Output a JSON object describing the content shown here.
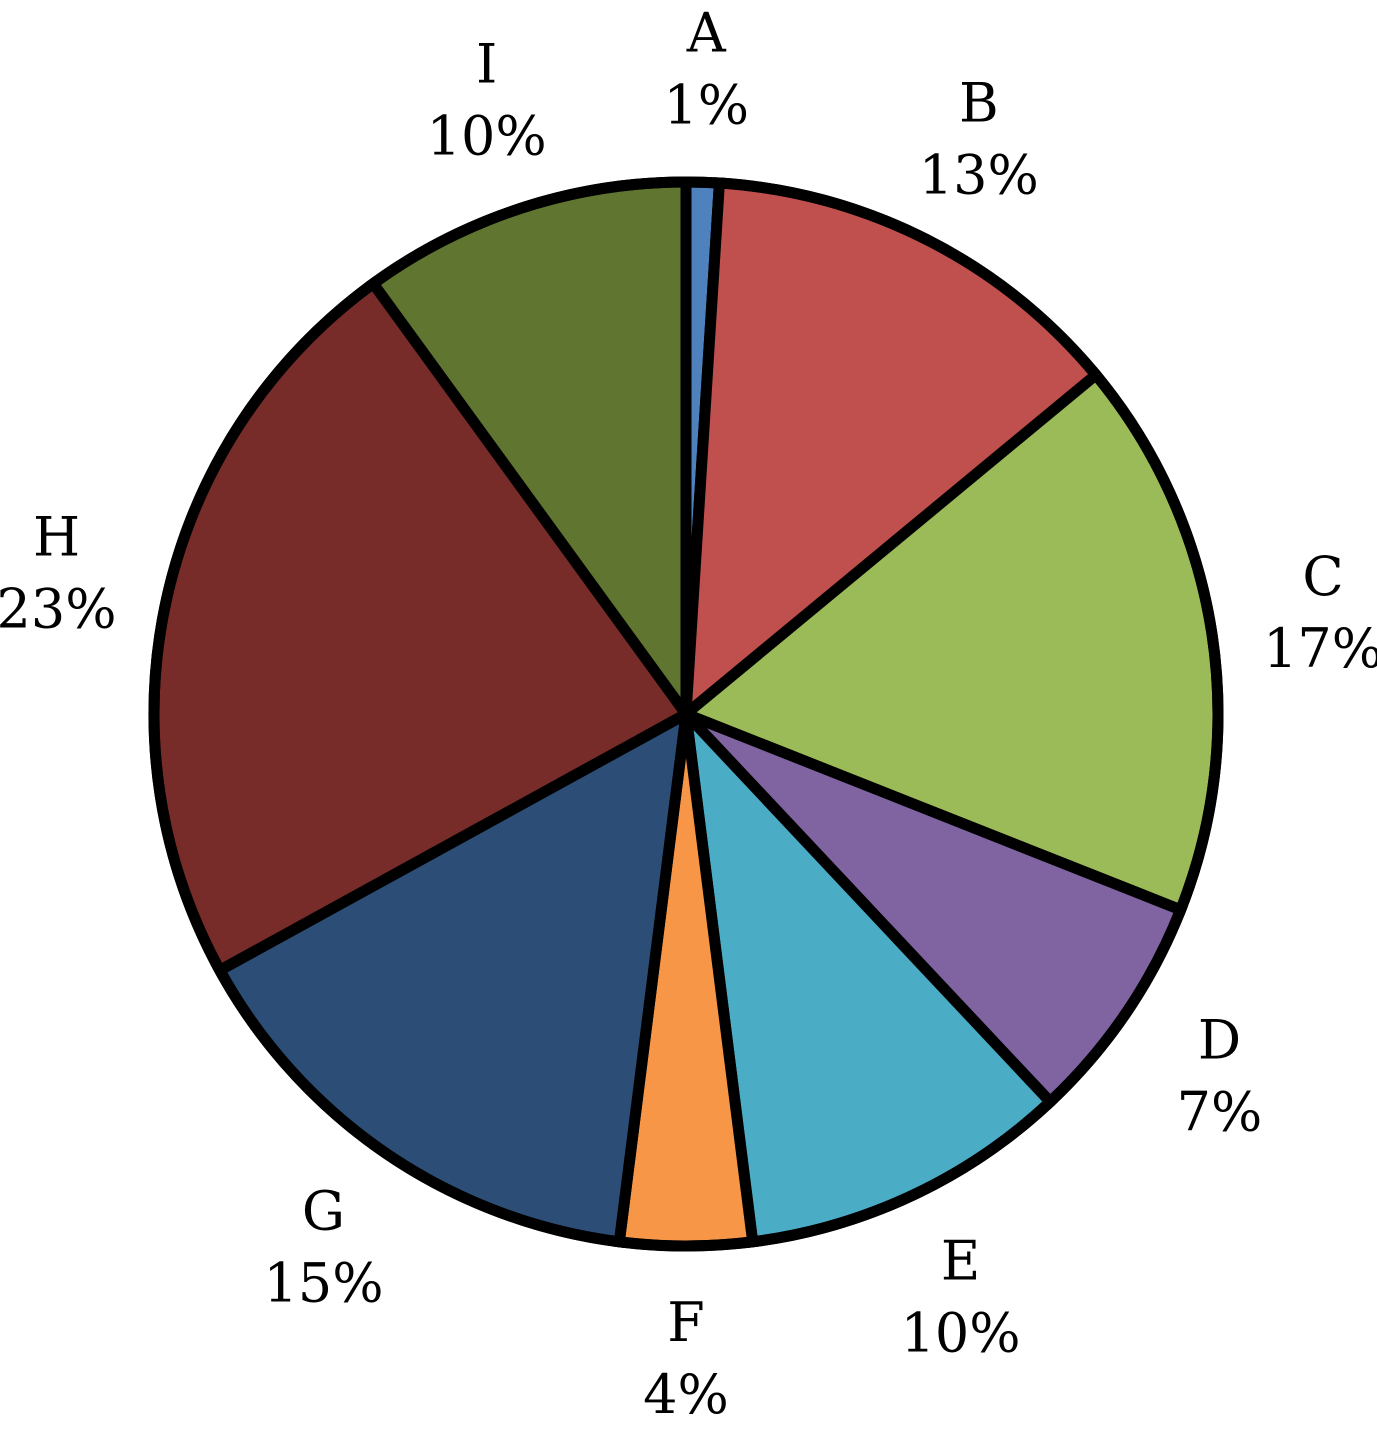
{
  "chart_data": {
    "type": "pie",
    "title": "",
    "slices": [
      {
        "category": "A",
        "value": 1,
        "label": "1%",
        "color": "#4F81BD"
      },
      {
        "category": "B",
        "value": 13,
        "label": "13%",
        "color": "#C0504D"
      },
      {
        "category": "C",
        "value": 17,
        "label": "17%",
        "color": "#9BBB59"
      },
      {
        "category": "D",
        "value": 7,
        "label": "7%",
        "color": "#8064A2"
      },
      {
        "category": "E",
        "value": 10,
        "label": "10%",
        "color": "#4BACC6"
      },
      {
        "category": "F",
        "value": 4,
        "label": "4%",
        "color": "#F79646"
      },
      {
        "category": "G",
        "value": 15,
        "label": "15%",
        "color": "#2C4D75"
      },
      {
        "category": "H",
        "value": 23,
        "label": "23%",
        "color": "#772C2A"
      },
      {
        "category": "I",
        "value": 10,
        "label": "10%",
        "color": "#5F7530"
      }
    ],
    "start": "12 o'clock",
    "direction": "clockwise",
    "legend": "none",
    "data_labels": "outside, category name above percentage"
  }
}
